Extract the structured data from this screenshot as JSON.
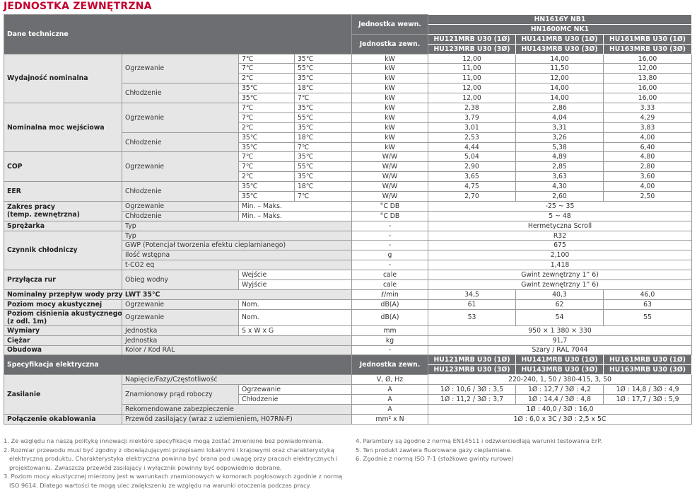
{
  "title": "JEDNOSTKA ZEWNĘTRZNA",
  "table": {
    "rows": [
      [
        "Dane techniczne",
        "Jednostka wewn.",
        "HN1616Y NB1"
      ],
      [
        "HN1600MC NK1"
      ],
      [
        "Jednostka zewn.",
        "HU121MRB U30 (1Ø)",
        "HU141MRB U30 (1Ø)",
        "HU161MRB U30 (1Ø)"
      ],
      [
        "HU123MRB U30 (3Ø)",
        "HU143MRB U30 (3Ø)",
        "HU163MRB U30 (3Ø)"
      ],
      [
        "Wydajność nominalna",
        "Ogrzewanie",
        "7℃",
        "35℃",
        "kW",
        "12,00",
        "14,00",
        "16,00"
      ],
      [
        "7℃",
        "55℃",
        "kW",
        "11,00",
        "11,50",
        "12,00"
      ],
      [
        "2℃",
        "35℃",
        "kW",
        "11,00",
        "12,00",
        "13,80"
      ],
      [
        "Chłodzenie",
        "35℃",
        "18℃",
        "kW",
        "12,00",
        "14,00",
        "16,00"
      ],
      [
        "35℃",
        "7℃",
        "kW",
        "12,00",
        "14,00",
        "16,00"
      ],
      [
        "Nominalna moc wejściowa",
        "Ogrzewanie",
        "7℃",
        "35℃",
        "kW",
        "2,38",
        "2,86",
        "3,33"
      ],
      [
        "7℃",
        "55℃",
        "kW",
        "3,79",
        "4,04",
        "4,29"
      ],
      [
        "2℃",
        "35℃",
        "kW",
        "3,01",
        "3,31",
        "3,83"
      ],
      [
        "Chłodzenie",
        "35℃",
        "18℃",
        "kW",
        "2,53",
        "3,26",
        "4,00"
      ],
      [
        "35℃",
        "7℃",
        "kW",
        "4,44",
        "5,38",
        "6,40"
      ],
      [
        "COP",
        "Ogrzewanie",
        "7℃",
        "35℃",
        "W/W",
        "5,04",
        "4,89",
        "4,80"
      ],
      [
        "7℃",
        "55℃",
        "W/W",
        "2,90",
        "2,85",
        "2,80"
      ],
      [
        "2℃",
        "35℃",
        "W/W",
        "3,65",
        "3,63",
        "3,60"
      ],
      [
        "EER",
        "Chłodzenie",
        "35℃",
        "18℃",
        "W/W",
        "4,75",
        "4,30",
        "4,00"
      ],
      [
        "35℃",
        "7℃",
        "W/W",
        "2,70",
        "2,60",
        "2,50"
      ],
      [
        [
          "Zakres pracy",
          "(temp. zewnętrzna)"
        ],
        "Ogrzewanie",
        "Min. – Maks.",
        "°C DB",
        "-25 ~ 35"
      ],
      [
        "Chłodzenie",
        "Min. – Maks.",
        "°C DB",
        "5 ~ 48"
      ],
      [
        "Sprężarka",
        "Typ",
        "-",
        "Hermetyczna Scroll"
      ],
      [
        "Czynnik chłodniczy",
        "Typ",
        "-",
        "R32"
      ],
      [
        "GWP (Potencjał tworzenia efektu cieplarnianego)",
        "-",
        "675"
      ],
      [
        "Ilość wstępna",
        "g",
        "2,100"
      ],
      [
        "t-CO2 eq",
        "-",
        "1,418"
      ],
      [
        "Przyłącza rur",
        "Obieg wodny",
        "Wejście",
        "cale",
        "Gwint zewnętrzny 1” 6)"
      ],
      [
        "Wyjście",
        "cale",
        "Gwint zewnętrzny 1” 6)"
      ],
      [
        "Nominalny przepływ wody przy LWT 35°C",
        "ℓ/min",
        "34,5",
        "40,3",
        "46,0"
      ],
      [
        "Poziom mocy akustycznej",
        "Ogrzewanie",
        "Nom.",
        "dB(A)",
        "61",
        "62",
        "63"
      ],
      [
        [
          "Poziom ciśnienia akustycznego",
          "(z odl. 1m)"
        ],
        "Ogrzewanie",
        "Nom.",
        "dB(A)",
        "53",
        "54",
        "55"
      ],
      [
        "Wymiary",
        "Jednostka",
        "S x W x G",
        "mm",
        "950 × 1 380 × 330"
      ],
      [
        "Ciężar",
        "Jednostka",
        "kg",
        "91,7"
      ],
      [
        "Obudowa",
        "Kolor / Kod RAL",
        "-",
        "Szary / RAL 7044"
      ],
      [
        "Specyfikacja elektryczna",
        "Jednostka zewn.",
        "HU121MRB U30 (1Ø)",
        "HU141MRB U30 (1Ø)",
        "HU161MRB U30 (1Ø)"
      ],
      [
        "HU123MRB U30 (3Ø)",
        "HU143MRB U30 (3Ø)",
        "HU163MRB U30 (3Ø)"
      ],
      [
        "Zasilanie",
        "Napięcie/Fazy/Częstotliwość",
        "V, Ø, Hz",
        "220-240, 1, 50 / 380-415, 3, 50"
      ],
      [
        "Znamionowy prąd roboczy",
        "Ogrzewanie",
        "A",
        "1Ø : 10,6 / 3Ø : 3,5",
        "1Ø : 12,7 / 3Ø : 4,2",
        "1Ø : 14,8 / 3Ø : 4,9"
      ],
      [
        "Chłodzenie",
        "A",
        "1Ø : 11,2 / 3Ø : 3,7",
        "1Ø : 14,4 / 3Ø : 4,8",
        "1Ø : 17,7 / 3Ø : 5,9"
      ],
      [
        "Rekomendowane zabezpieczenie",
        "A",
        "1Ø : 40,0 / 3Ø : 16,0"
      ],
      [
        "Połączenie okablowania",
        "Przewód zasilający (wraz z uziemieniem, H07RN-F)",
        "mm² x N",
        "1Ø : 6,0 x 3C / 3Ø : 2,5 x 5C"
      ]
    ]
  },
  "notes": {
    "left": [
      "1. Ze względu na naszą politykę innowacji niektóre specyfikacje mogą zostać zmienione bez powiadomienia.",
      "2. Rozmiar przewodu musi być zgodny z obowiązującymi przepisami lokalnymi i krajowymi oraz charakterystyką elektryczną produktu. Charakterystyka elektryczna powinna być brana pod uwagę przy pracach elektrycznych i projektowaniu. Zwłaszcza przewód zasilający i wyłącznik powinny być odpowiednio dobrane.",
      "3. Poziom mocy akustycznej mierzony jest w warunkach znamionowych w komorach pogłosowych zgodnie z normą ISO 9614. Dlatego wartości te mogą ulec zwiększeniu ze względu na warunki otoczenia podczas pracy."
    ],
    "right": [
      "4. Paramtery są zgodne z normą EN14511 i odzwierciedlają warunki testowania ErP.",
      "5. Ten produkt zawiera fluorowane gazy cieplarniane.",
      "6. Zgodnie z normą ISO 7-1 (stożkowe gwinty rurowe)"
    ]
  }
}
